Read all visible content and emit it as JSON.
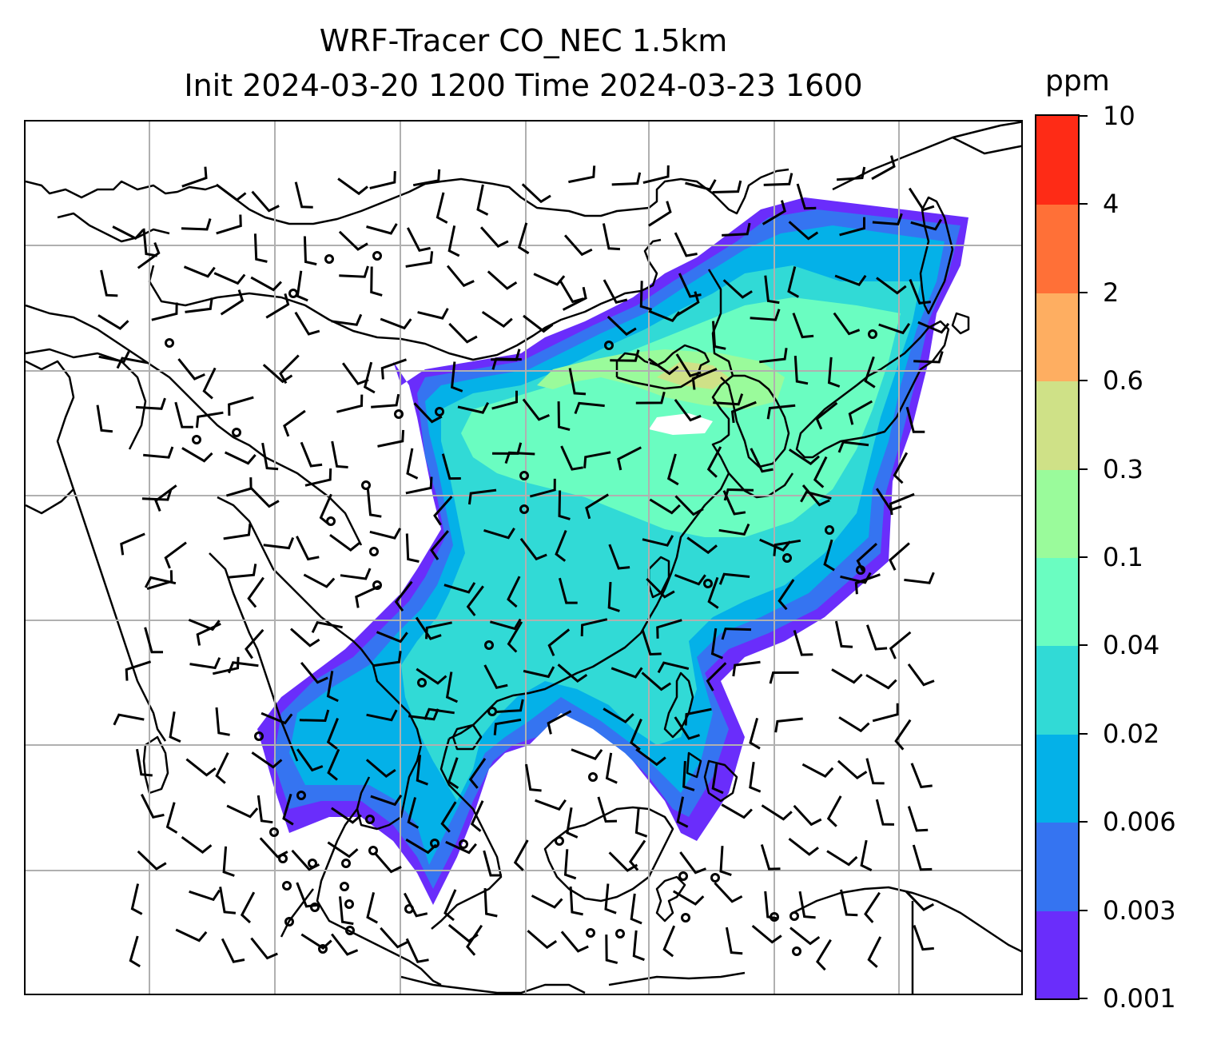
{
  "title": {
    "line1": "WRF-Tracer CO_NEC 1.5km",
    "line2": "Init 2024-03-20 1200 Time 2024-03-23 1600"
  },
  "colorbar": {
    "unit": "ppm",
    "tick_labels": [
      "0.001",
      "0.003",
      "0.006",
      "0.02",
      "0.04",
      "0.1",
      "0.3",
      "0.6",
      "2",
      "4",
      "10"
    ],
    "colors": [
      "#6a2dfb",
      "#3574f1",
      "#04b1e8",
      "#31dad6",
      "#6afdc1",
      "#9afb9b",
      "#cfe187",
      "#feae61",
      "#ff7037",
      "#fe2b16"
    ]
  },
  "map": {
    "field": "CO_NEC tracer concentration with wind barbs",
    "gridlines": true
  }
}
